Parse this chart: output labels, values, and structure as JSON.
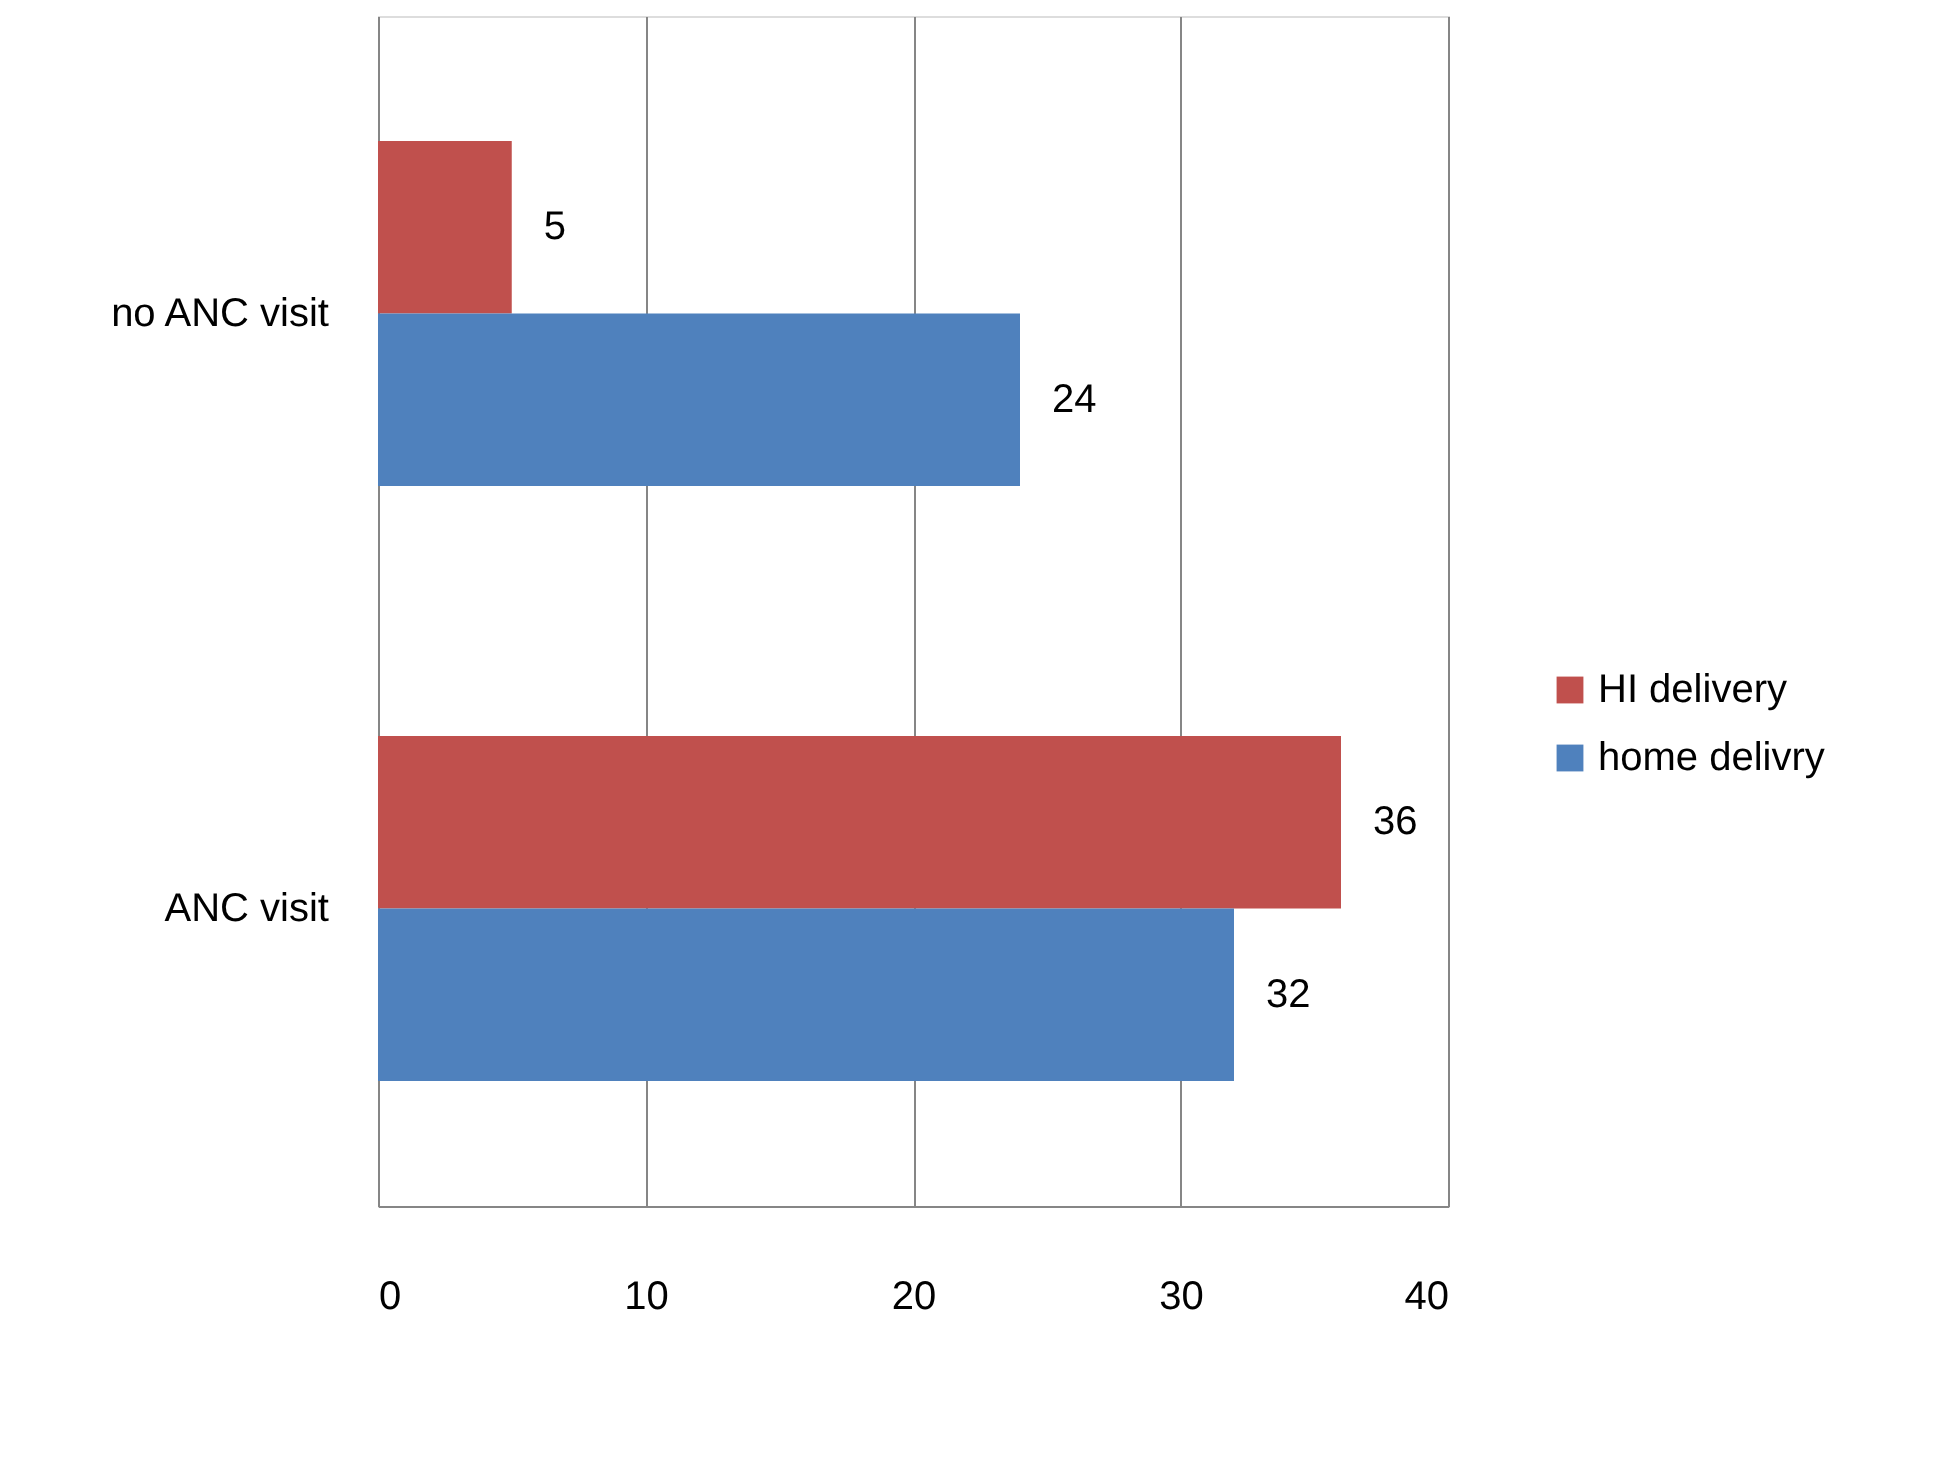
{
  "chart_data": {
    "type": "bar",
    "orientation": "horizontal",
    "categories": [
      "no ANC visit",
      "ANC visit"
    ],
    "series": [
      {
        "name": "HI delivery",
        "color": "#c0504d",
        "values": [
          5,
          36
        ]
      },
      {
        "name": "home delivry",
        "color": "#4f81bd",
        "values": [
          24,
          32
        ]
      }
    ],
    "xlim": [
      0,
      40
    ],
    "xticks": [
      0,
      10,
      20,
      30,
      40
    ],
    "grid": "x",
    "legend": "right",
    "data_labels": true
  }
}
